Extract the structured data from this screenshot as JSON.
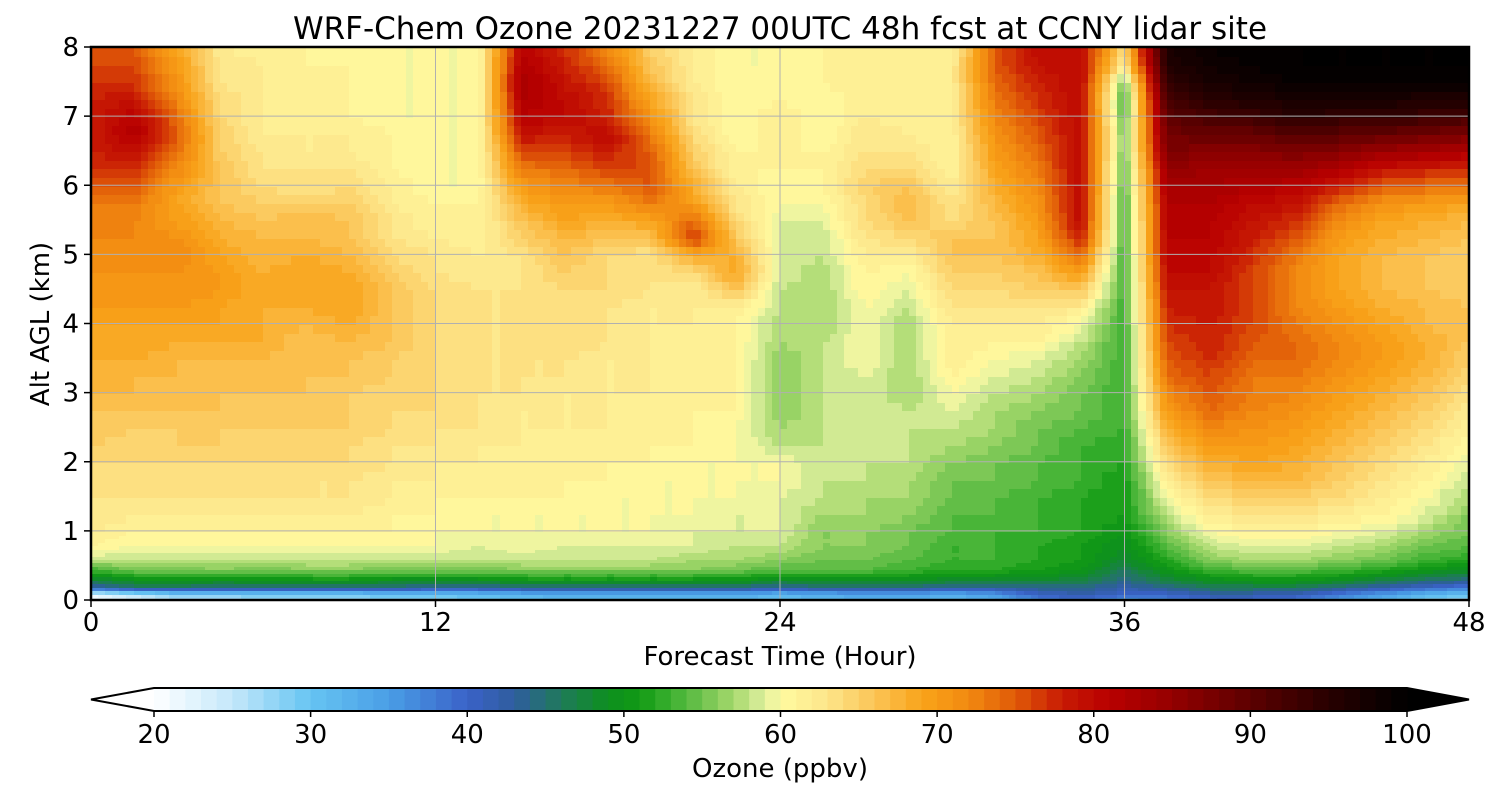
{
  "chart_data": {
    "type": "heatmap",
    "title": "WRF-Chem Ozone  20231227 00UTC 48h fcst at CCNY lidar site",
    "xlabel": "Forecast Time (Hour)",
    "ylabel": "Alt AGL (km)",
    "xlim": [
      0,
      48
    ],
    "ylim": [
      0,
      8
    ],
    "x_ticks": [
      "0",
      "12",
      "24",
      "36",
      "48"
    ],
    "y_ticks": [
      "0",
      "1",
      "2",
      "3",
      "4",
      "5",
      "6",
      "7",
      "8"
    ],
    "grid": true,
    "x": [
      0,
      1.5,
      3,
      4.5,
      6,
      7.5,
      9,
      10.5,
      12,
      13.5,
      15,
      16.5,
      18,
      19.5,
      21,
      22.5,
      24,
      25.5,
      27,
      28.5,
      30,
      31.5,
      33,
      34.5,
      36,
      37.5,
      39,
      40.5,
      42,
      43.5,
      45,
      46.5,
      48
    ],
    "y": [
      0,
      0.1,
      0.2,
      0.3,
      0.45,
      0.6,
      0.8,
      1.0,
      1.25,
      1.5,
      1.75,
      2.0,
      2.25,
      2.5,
      2.75,
      3.0,
      3.25,
      3.5,
      3.75,
      4.0,
      4.25,
      4.5,
      4.75,
      5.0,
      5.25,
      5.5,
      5.75,
      6.0,
      6.25,
      6.5,
      6.75,
      7.0,
      7.25,
      7.5,
      7.75,
      8.0
    ],
    "colorbar": {
      "label": "Ozone  (ppbv)",
      "min": 20,
      "max": 100,
      "step": 1,
      "ticks": [
        "20",
        "30",
        "40",
        "50",
        "60",
        "70",
        "80",
        "90",
        "100"
      ],
      "extend": "both",
      "anchors": [
        {
          "v": 20,
          "c": "#ffffff"
        },
        {
          "v": 25,
          "c": "#c4e8fa"
        },
        {
          "v": 30,
          "c": "#66c4f2"
        },
        {
          "v": 35,
          "c": "#4a9ee6"
        },
        {
          "v": 40,
          "c": "#3a62c8"
        },
        {
          "v": 43,
          "c": "#2f5d9e"
        },
        {
          "v": 46,
          "c": "#1f7a5a"
        },
        {
          "v": 49,
          "c": "#0d8f1e"
        },
        {
          "v": 51,
          "c": "#119a14"
        },
        {
          "v": 53,
          "c": "#3cb030"
        },
        {
          "v": 55,
          "c": "#6fc24e"
        },
        {
          "v": 57,
          "c": "#a6d86c"
        },
        {
          "v": 59,
          "c": "#dff0a0"
        },
        {
          "v": 60,
          "c": "#fffaa0"
        },
        {
          "v": 63,
          "c": "#fde68a"
        },
        {
          "v": 66,
          "c": "#fbc456"
        },
        {
          "v": 69,
          "c": "#f9a41a"
        },
        {
          "v": 72,
          "c": "#f28a10"
        },
        {
          "v": 75,
          "c": "#e05a08"
        },
        {
          "v": 78,
          "c": "#c81a04"
        },
        {
          "v": 81,
          "c": "#b80000"
        },
        {
          "v": 85,
          "c": "#940000"
        },
        {
          "v": 90,
          "c": "#5c0000"
        },
        {
          "v": 95,
          "c": "#280000"
        },
        {
          "v": 100,
          "c": "#000000"
        }
      ]
    },
    "z_columns_by_x": [
      [
        21,
        22,
        42,
        47,
        53,
        58,
        61,
        62,
        63,
        63,
        64,
        64,
        65,
        66,
        66,
        67,
        67,
        68,
        68,
        69,
        70,
        71,
        71,
        71,
        72,
        72,
        73,
        75,
        77,
        78,
        78,
        78,
        78,
        77,
        76,
        75
      ],
      [
        23,
        25,
        45,
        49,
        55,
        58,
        60,
        61,
        62,
        63,
        63,
        64,
        64,
        65,
        66,
        67,
        67,
        68,
        69,
        69,
        70,
        70,
        71,
        71,
        72,
        72,
        73,
        75,
        77,
        79,
        82,
        81,
        79,
        77,
        76,
        75
      ],
      [
        26,
        28,
        45,
        50,
        55,
        58,
        60,
        61,
        62,
        63,
        64,
        64,
        65,
        65,
        66,
        66,
        67,
        67,
        68,
        69,
        70,
        71,
        71,
        72,
        71,
        70,
        69,
        70,
        72,
        74,
        75,
        74,
        72,
        71,
        70,
        69
      ],
      [
        26,
        28,
        44,
        49,
        56,
        58,
        60,
        61,
        62,
        63,
        63,
        64,
        65,
        65,
        66,
        66,
        66,
        67,
        68,
        69,
        69,
        70,
        70,
        69,
        68,
        67,
        66,
        66,
        66,
        65,
        65,
        64,
        64,
        63,
        63,
        62
      ],
      [
        27,
        29,
        44,
        50,
        55,
        58,
        60,
        61,
        62,
        63,
        64,
        64,
        64,
        65,
        65,
        66,
        66,
        67,
        68,
        68,
        68,
        68,
        68,
        67,
        67,
        66,
        65,
        64,
        63,
        63,
        62,
        62,
        62,
        62,
        62,
        61
      ],
      [
        27,
        29,
        44,
        50,
        56,
        58,
        60,
        61,
        62,
        63,
        63,
        64,
        64,
        65,
        65,
        66,
        66,
        66,
        66,
        67,
        68,
        69,
        69,
        68,
        67,
        67,
        65,
        63,
        63,
        62,
        62,
        61,
        61,
        61,
        61,
        61
      ],
      [
        27,
        29,
        44,
        50,
        56,
        58,
        60,
        61,
        62,
        63,
        63,
        64,
        64,
        65,
        65,
        65,
        66,
        66,
        67,
        68,
        69,
        69,
        68,
        67,
        66,
        66,
        65,
        64,
        63,
        62,
        62,
        61,
        61,
        61,
        61,
        60
      ],
      [
        28,
        30,
        44,
        49,
        55,
        58,
        60,
        61,
        61,
        62,
        62,
        63,
        63,
        64,
        64,
        64,
        65,
        65,
        66,
        66,
        66,
        66,
        65,
        64,
        63,
        63,
        62,
        62,
        61,
        61,
        61,
        60,
        60,
        60,
        60,
        60
      ],
      [
        28,
        30,
        43,
        49,
        55,
        58,
        60,
        60,
        61,
        61,
        62,
        62,
        63,
        63,
        64,
        64,
        64,
        64,
        64,
        64,
        64,
        64,
        63,
        63,
        62,
        61,
        61,
        60,
        60,
        60,
        60,
        60,
        60,
        60,
        60,
        60
      ],
      [
        29,
        31,
        43,
        49,
        55,
        58,
        59,
        60,
        60,
        61,
        61,
        62,
        62,
        63,
        63,
        63,
        63,
        63,
        63,
        63,
        63,
        63,
        62,
        62,
        61,
        61,
        61,
        60,
        60,
        60,
        60,
        60,
        60,
        60,
        60,
        60
      ],
      [
        30,
        32,
        44,
        50,
        56,
        58,
        60,
        60,
        60,
        61,
        61,
        61,
        62,
        62,
        62,
        63,
        63,
        63,
        63,
        63,
        63,
        63,
        63,
        63,
        65,
        66,
        68,
        70,
        73,
        76,
        79,
        81,
        82,
        83,
        82,
        81
      ],
      [
        31,
        33,
        44,
        50,
        56,
        58,
        59,
        60,
        60,
        61,
        61,
        61,
        61,
        62,
        62,
        62,
        63,
        63,
        64,
        64,
        64,
        64,
        65,
        66,
        67,
        69,
        70,
        72,
        74,
        76,
        78,
        80,
        80,
        79,
        78,
        77
      ],
      [
        31,
        33,
        44,
        50,
        56,
        58,
        59,
        60,
        60,
        60,
        61,
        61,
        61,
        62,
        62,
        62,
        62,
        62,
        63,
        63,
        63,
        64,
        64,
        64,
        66,
        68,
        70,
        73,
        76,
        78,
        80,
        78,
        77,
        76,
        74,
        72
      ],
      [
        31,
        33,
        44,
        50,
        56,
        58,
        59,
        60,
        60,
        60,
        60,
        61,
        61,
        61,
        61,
        62,
        62,
        62,
        62,
        62,
        62,
        63,
        63,
        63,
        66,
        69,
        73,
        75,
        76,
        75,
        73,
        71,
        69,
        67,
        66,
        65
      ],
      [
        31,
        33,
        44,
        50,
        56,
        57,
        59,
        59,
        60,
        60,
        60,
        60,
        61,
        61,
        61,
        61,
        61,
        61,
        61,
        62,
        62,
        62,
        64,
        68,
        77,
        74,
        70,
        68,
        66,
        65,
        64,
        63,
        63,
        62,
        62,
        62
      ],
      [
        31,
        33,
        44,
        50,
        55,
        57,
        58,
        59,
        59,
        60,
        60,
        60,
        60,
        60,
        61,
        61,
        61,
        61,
        61,
        61,
        62,
        66,
        69,
        68,
        66,
        64,
        63,
        62,
        61,
        61,
        60,
        60,
        60,
        60,
        60,
        60
      ],
      [
        30,
        32,
        43,
        48,
        54,
        56,
        58,
        59,
        59,
        59,
        60,
        60,
        58,
        57,
        56,
        56,
        56,
        56,
        57,
        57,
        58,
        58,
        59,
        59,
        59,
        59,
        60,
        60,
        61,
        61,
        62,
        62,
        61,
        61,
        60,
        60
      ],
      [
        31,
        33,
        44,
        49,
        54,
        55,
        56,
        56,
        57,
        58,
        58,
        58,
        58,
        58,
        58,
        58,
        58,
        58,
        58,
        57,
        57,
        57,
        57,
        58,
        58,
        59,
        60,
        61,
        61,
        61,
        60,
        60,
        60,
        61,
        61,
        61
      ],
      [
        32,
        34,
        44,
        49,
        54,
        55,
        56,
        56,
        57,
        57,
        58,
        58,
        58,
        59,
        59,
        59,
        59,
        60,
        60,
        60,
        60,
        61,
        61,
        62,
        63,
        64,
        64,
        65,
        64,
        63,
        63,
        62,
        62,
        62,
        62,
        61
      ],
      [
        32,
        34,
        44,
        49,
        53,
        54,
        55,
        55,
        56,
        57,
        57,
        58,
        58,
        58,
        58,
        57,
        57,
        57,
        57,
        57,
        58,
        59,
        60,
        62,
        64,
        66,
        67,
        66,
        64,
        63,
        62,
        61,
        61,
        61,
        61,
        61
      ],
      [
        31,
        33,
        43,
        48,
        52,
        53,
        53,
        54,
        54,
        55,
        55,
        56,
        57,
        58,
        59,
        60,
        61,
        62,
        62,
        62,
        63,
        64,
        65,
        66,
        66,
        64,
        63,
        62,
        61,
        61,
        61,
        62,
        62,
        62,
        62,
        61
      ],
      [
        32,
        35,
        43,
        48,
        52,
        53,
        53,
        53,
        54,
        54,
        55,
        55,
        56,
        57,
        57,
        58,
        59,
        60,
        61,
        62,
        63,
        64,
        65,
        66,
        66,
        66,
        67,
        68,
        69,
        70,
        71,
        72,
        73,
        74,
        75,
        75
      ],
      [
        36,
        40,
        44,
        48,
        51,
        52,
        52,
        53,
        53,
        53,
        54,
        54,
        55,
        55,
        56,
        57,
        58,
        59,
        61,
        62,
        63,
        65,
        66,
        68,
        69,
        70,
        71,
        72,
        73,
        74,
        75,
        76,
        77,
        78,
        79,
        80
      ],
      [
        38,
        42,
        44,
        47,
        50,
        51,
        51,
        52,
        52,
        52,
        53,
        53,
        53,
        54,
        55,
        55,
        56,
        57,
        58,
        60,
        62,
        66,
        70,
        74,
        78,
        80,
        80,
        80,
        80,
        80,
        80,
        80,
        80,
        80,
        80,
        80
      ],
      [
        34,
        40,
        42,
        44,
        46,
        48,
        49,
        50,
        51,
        51,
        51,
        52,
        52,
        53,
        53,
        53,
        53,
        53,
        53,
        53,
        53,
        53,
        53,
        53,
        53,
        53,
        53,
        54,
        54,
        55,
        55,
        54,
        53,
        55,
        62,
        64
      ],
      [
        36,
        40,
        44,
        47,
        50,
        52,
        54,
        56,
        58,
        60,
        62,
        64,
        66,
        68,
        70,
        72,
        74,
        75,
        76,
        77,
        78,
        79,
        80,
        81,
        81,
        82,
        82,
        83,
        85,
        87,
        88,
        90,
        92,
        94,
        96,
        97
      ],
      [
        38,
        42,
        46,
        49,
        53,
        56,
        58,
        60,
        62,
        64,
        66,
        68,
        70,
        72,
        74,
        75,
        76,
        77,
        78,
        78,
        79,
        79,
        80,
        80,
        81,
        81,
        82,
        83,
        84,
        86,
        89,
        92,
        95,
        97,
        98,
        99
      ],
      [
        38,
        42,
        46,
        50,
        54,
        57,
        59,
        61,
        63,
        65,
        67,
        69,
        70,
        71,
        72,
        73,
        73,
        74,
        75,
        76,
        76,
        76,
        76,
        77,
        78,
        79,
        80,
        82,
        84,
        86,
        89,
        93,
        96,
        98,
        99,
        100
      ],
      [
        37,
        41,
        46,
        50,
        54,
        57,
        59,
        61,
        63,
        65,
        67,
        68,
        69,
        70,
        71,
        72,
        73,
        74,
        74,
        73,
        72,
        72,
        72,
        73,
        75,
        77,
        79,
        81,
        84,
        87,
        91,
        95,
        97,
        99,
        100,
        100
      ],
      [
        34,
        38,
        44,
        49,
        53,
        56,
        58,
        60,
        62,
        64,
        65,
        66,
        67,
        68,
        69,
        70,
        71,
        72,
        72,
        71,
        70,
        69,
        69,
        69,
        70,
        72,
        74,
        78,
        82,
        86,
        90,
        94,
        97,
        99,
        100,
        100
      ],
      [
        31,
        35,
        42,
        47,
        52,
        55,
        57,
        59,
        61,
        62,
        63,
        64,
        65,
        66,
        67,
        68,
        69,
        70,
        70,
        69,
        68,
        67,
        67,
        67,
        68,
        69,
        71,
        75,
        79,
        84,
        89,
        94,
        97,
        99,
        100,
        100
      ],
      [
        28,
        32,
        40,
        45,
        50,
        53,
        55,
        57,
        59,
        60,
        61,
        62,
        63,
        64,
        65,
        66,
        67,
        68,
        68,
        67,
        67,
        66,
        66,
        66,
        67,
        68,
        70,
        74,
        78,
        83,
        88,
        93,
        96,
        99,
        100,
        100
      ],
      [
        26,
        30,
        38,
        44,
        49,
        52,
        54,
        55,
        56,
        57,
        58,
        59,
        60,
        61,
        62,
        63,
        64,
        65,
        66,
        66,
        66,
        65,
        65,
        65,
        66,
        67,
        69,
        73,
        77,
        82,
        87,
        92,
        96,
        99,
        100,
        100
      ]
    ]
  }
}
